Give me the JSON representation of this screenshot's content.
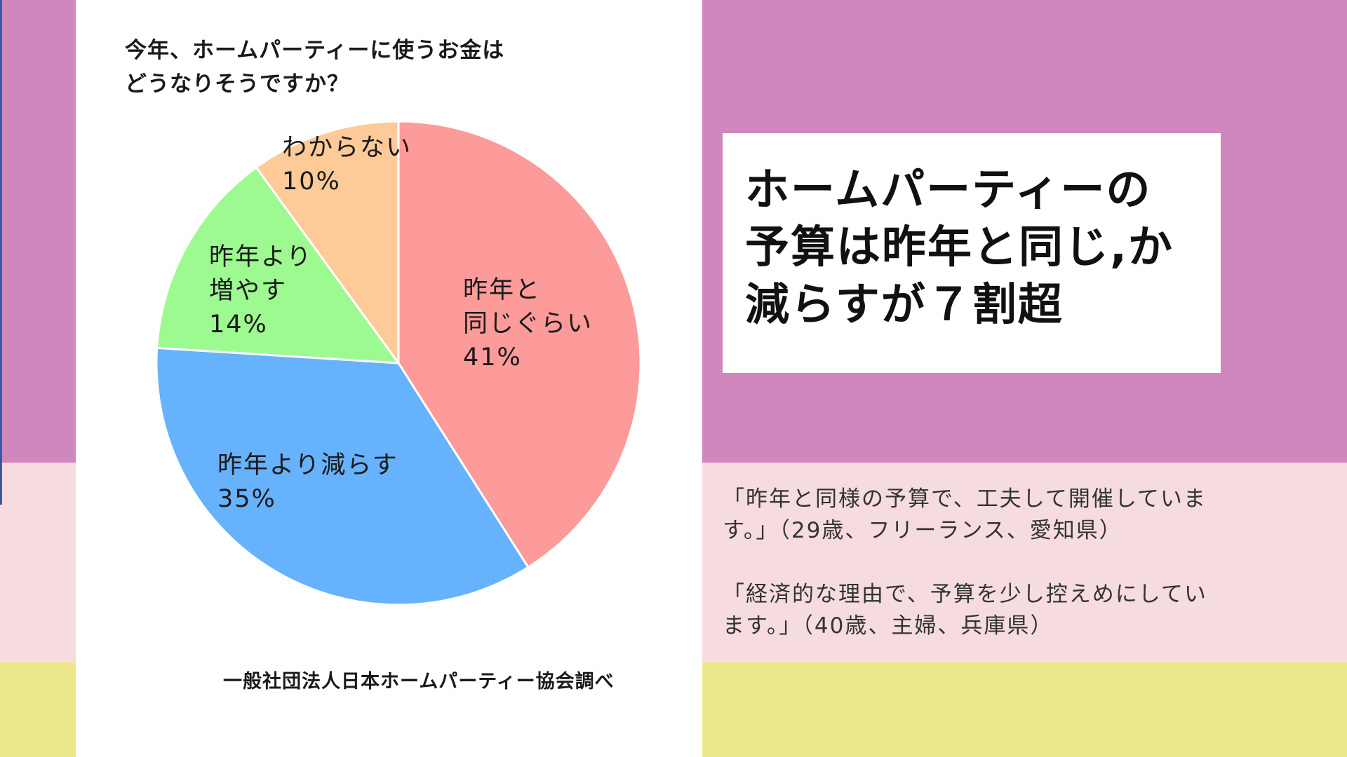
{
  "chart_data": {
    "type": "pie",
    "title": "今年、ホームパーティーに使うお金は\nどうなりそうですか？",
    "slices": [
      {
        "label": "昨年と\n同じぐらい",
        "value": 41,
        "value_label": "41%",
        "color": "#fd9a9a"
      },
      {
        "label": "昨年より減らす",
        "value": 35,
        "value_label": "35%",
        "color": "#67b2fc"
      },
      {
        "label": "昨年より\n増やす",
        "value": 14,
        "value_label": "14%",
        "color": "#9cfa90"
      },
      {
        "label": "わからない",
        "value": 10,
        "value_label": "10%",
        "color": "#fdca98"
      }
    ],
    "start_angle_deg": 0,
    "direction": "clockwise"
  },
  "source": "一般社団法人日本ホームパーティー協会調べ",
  "headline": "ホームパーティーの\n予算は昨年と同じ,か\n減らすが７割超",
  "quotes": [
    "「昨年と同様の予算で、工夫して開催していま\nす。」（29歳、フリーランス、愛知県）",
    "「経済的な理由で、予算を少し控えめにしてい\nます。」（40歳、主婦、兵庫県）"
  ],
  "colors": {
    "purple_band": "#cf87bd",
    "pink_band": "#f7dcdf",
    "yellow_band": "#ece88a"
  }
}
